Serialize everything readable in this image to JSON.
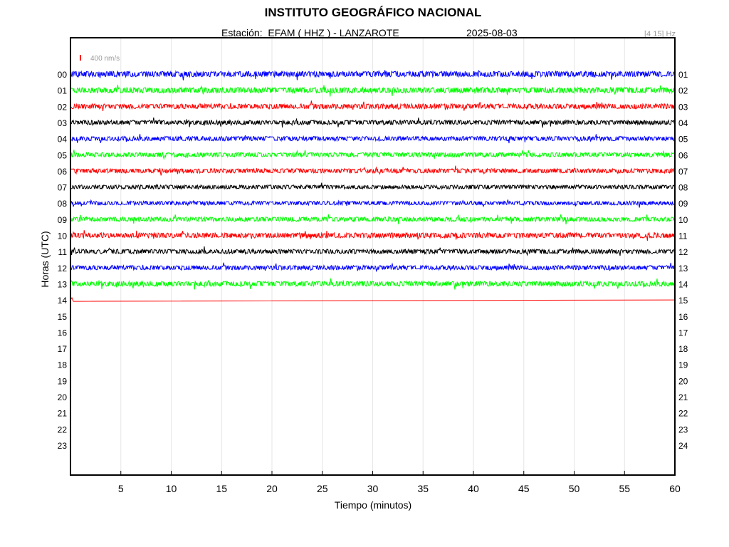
{
  "header": {
    "title": "INSTITUTO GEOGRÁFICO NACIONAL",
    "station_label": "Estación:  EFAM ( HHZ ) - LANZAROTE",
    "date": "2025-08-03",
    "filter": "[4 15] Hz"
  },
  "chart_data": {
    "type": "line",
    "title": "INSTITUTO GEOGRÁFICO NACIONAL",
    "xlabel": "Tiempo (minutos)",
    "ylabel": "Horas (UTC)",
    "xlim": [
      0,
      60
    ],
    "x_ticks": [
      5,
      10,
      15,
      20,
      25,
      30,
      35,
      40,
      45,
      50,
      55,
      60
    ],
    "y_ticks_left": [
      "00",
      "01",
      "02",
      "03",
      "04",
      "05",
      "06",
      "07",
      "08",
      "09",
      "10",
      "11",
      "12",
      "13",
      "14",
      "15",
      "16",
      "17",
      "18",
      "19",
      "20",
      "21",
      "22",
      "23"
    ],
    "y_ticks_right": [
      "01",
      "02",
      "03",
      "04",
      "05",
      "06",
      "07",
      "08",
      "09",
      "10",
      "11",
      "12",
      "13",
      "14",
      "15",
      "16",
      "17",
      "18",
      "19",
      "20",
      "21",
      "22",
      "23",
      "24"
    ],
    "scale_label": "400 nm/s",
    "scale_color": "#ff0000",
    "grid": true,
    "trace_colors": [
      "#0000ff",
      "#00ff00",
      "#ff0000",
      "#000000"
    ],
    "series": [
      {
        "hour": "00",
        "end_minute": 60,
        "amplitude": 1.0
      },
      {
        "hour": "01",
        "end_minute": 60,
        "amplitude": 1.0
      },
      {
        "hour": "02",
        "end_minute": 60,
        "amplitude": 0.9
      },
      {
        "hour": "03",
        "end_minute": 60,
        "amplitude": 0.8
      },
      {
        "hour": "04",
        "end_minute": 60,
        "amplitude": 0.8
      },
      {
        "hour": "05",
        "end_minute": 60,
        "amplitude": 0.8
      },
      {
        "hour": "06",
        "end_minute": 60,
        "amplitude": 0.8
      },
      {
        "hour": "07",
        "end_minute": 60,
        "amplitude": 0.7
      },
      {
        "hour": "08",
        "end_minute": 60,
        "amplitude": 0.7
      },
      {
        "hour": "09",
        "end_minute": 60,
        "amplitude": 0.8
      },
      {
        "hour": "10",
        "end_minute": 60,
        "amplitude": 0.9
      },
      {
        "hour": "11",
        "end_minute": 60,
        "amplitude": 0.8
      },
      {
        "hour": "12",
        "end_minute": 60,
        "amplitude": 0.8
      },
      {
        "hour": "13",
        "end_minute": 60,
        "amplitude": 0.9
      },
      {
        "hour": "14",
        "end_minute": 0.3,
        "amplitude": 0.6
      }
    ]
  }
}
